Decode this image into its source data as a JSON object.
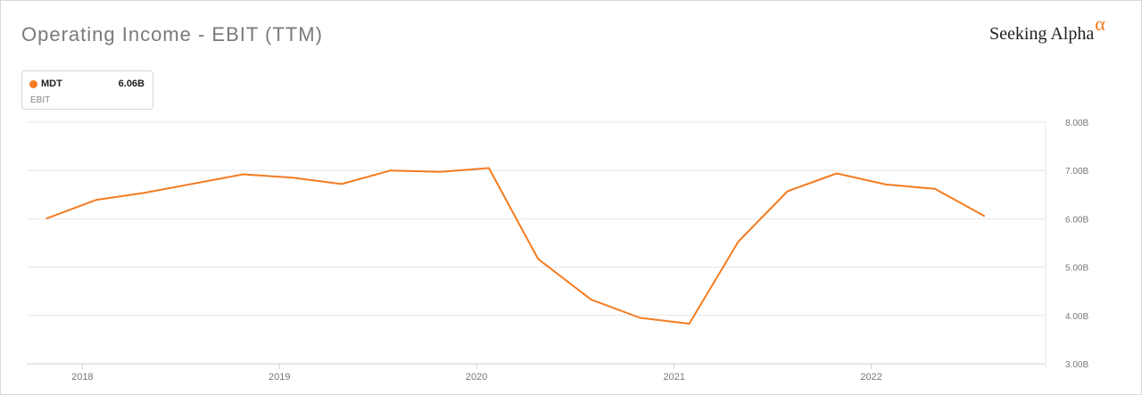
{
  "header": {
    "title": "Operating Income - EBIT (TTM)",
    "brand_text": "Seeking Alpha",
    "brand_symbol": "α"
  },
  "legend": {
    "ticker": "MDT",
    "value": "6.06B",
    "subtitle": "EBIT",
    "color": "#f47b20"
  },
  "chart_data": {
    "type": "line",
    "title": "Operating Income - EBIT (TTM)",
    "xlabel": "",
    "ylabel": "",
    "ylim": [
      3.0,
      8.0
    ],
    "xlim": [
      "2017-09-20",
      "2022-11-20"
    ],
    "yticks": [
      {
        "value": 8.0,
        "label": "8.00B"
      },
      {
        "value": 7.0,
        "label": "7.00B"
      },
      {
        "value": 6.0,
        "label": "6.00B"
      },
      {
        "value": 5.0,
        "label": "5.00B"
      },
      {
        "value": 4.0,
        "label": "4.00B"
      },
      {
        "value": 3.0,
        "label": "3.00B"
      }
    ],
    "xticks": [
      {
        "date": "2018-01-01",
        "label": "2018"
      },
      {
        "date": "2019-01-01",
        "label": "2019"
      },
      {
        "date": "2020-01-01",
        "label": "2020"
      },
      {
        "date": "2021-01-01",
        "label": "2021"
      },
      {
        "date": "2022-01-01",
        "label": "2022"
      }
    ],
    "grid": true,
    "legend_position": "top-left",
    "series": [
      {
        "name": "MDT",
        "color": "#f47b20",
        "points": [
          {
            "x": "2017-10-27",
            "y": 6.01
          },
          {
            "x": "2018-01-26",
            "y": 6.39
          },
          {
            "x": "2018-04-27",
            "y": 6.54
          },
          {
            "x": "2018-07-27",
            "y": 6.73
          },
          {
            "x": "2018-10-26",
            "y": 6.92
          },
          {
            "x": "2019-01-25",
            "y": 6.85
          },
          {
            "x": "2019-04-26",
            "y": 6.72
          },
          {
            "x": "2019-07-26",
            "y": 7.0
          },
          {
            "x": "2019-10-25",
            "y": 6.97
          },
          {
            "x": "2020-01-24",
            "y": 7.05
          },
          {
            "x": "2020-04-24",
            "y": 5.17
          },
          {
            "x": "2020-07-31",
            "y": 4.33
          },
          {
            "x": "2020-10-30",
            "y": 3.95
          },
          {
            "x": "2021-01-29",
            "y": 3.83
          },
          {
            "x": "2021-04-30",
            "y": 5.53
          },
          {
            "x": "2021-07-30",
            "y": 6.57
          },
          {
            "x": "2021-10-29",
            "y": 6.94
          },
          {
            "x": "2022-01-28",
            "y": 6.71
          },
          {
            "x": "2022-04-29",
            "y": 6.62
          },
          {
            "x": "2022-07-29",
            "y": 6.06
          }
        ]
      }
    ]
  }
}
